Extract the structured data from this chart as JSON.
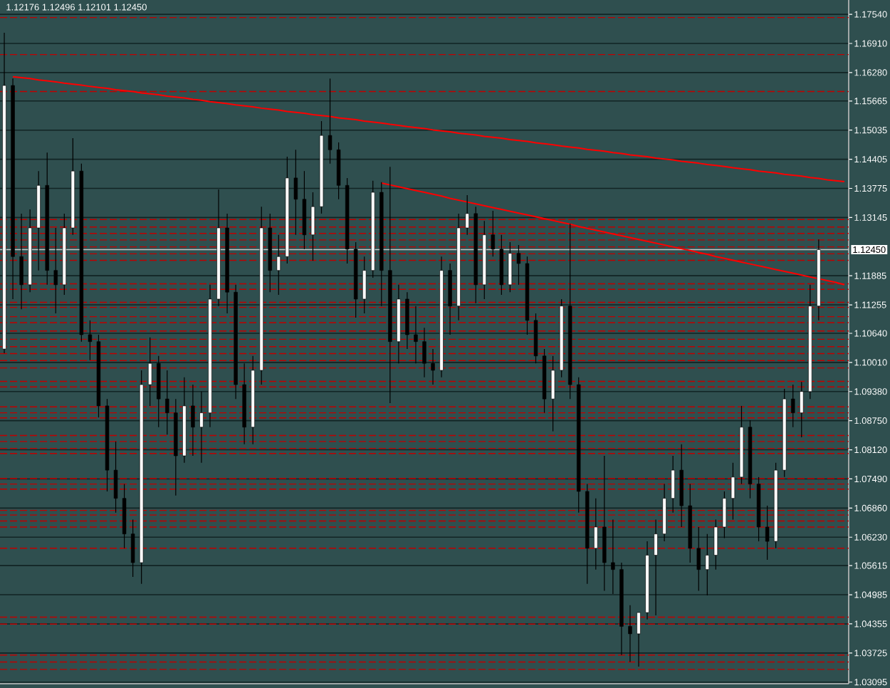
{
  "chart_data": {
    "type": "candlestick",
    "title": "1.12176 1.12496 1.12101 1.12450",
    "categories": [
      null,
      null,
      null,
      null,
      null,
      null,
      null,
      null,
      null,
      null,
      null,
      null,
      null,
      null,
      null,
      null,
      null,
      null,
      null,
      null,
      null,
      null,
      null,
      null,
      null,
      null,
      null,
      null,
      null,
      null,
      null,
      null,
      null,
      null,
      null,
      null,
      null,
      null,
      null,
      null,
      null,
      null,
      null,
      null,
      null,
      null,
      null,
      null,
      null,
      null,
      null,
      null,
      null,
      null,
      null,
      null,
      null,
      null,
      null,
      null,
      null,
      null,
      null,
      null,
      null,
      null,
      null,
      null,
      null,
      null,
      null,
      null,
      null,
      null,
      null,
      null,
      null,
      null,
      null,
      null,
      null,
      null,
      null,
      null,
      null,
      null,
      null,
      null,
      null,
      null,
      null,
      null,
      null,
      null,
      null,
      null,
      null,
      null,
      null
    ],
    "ohlc": [
      [
        1.103,
        1.1714,
        1.1021,
        1.16
      ],
      [
        1.16,
        1.1615,
        1.1138,
        1.123
      ],
      [
        1.123,
        1.1323,
        1.1116,
        1.1169
      ],
      [
        1.1169,
        1.1332,
        1.1153,
        1.1292
      ],
      [
        1.1292,
        1.1415,
        1.12,
        1.1384
      ],
      [
        1.1384,
        1.1455,
        1.1169,
        1.12
      ],
      [
        1.12,
        1.1292,
        1.1107,
        1.1169
      ],
      [
        1.1169,
        1.1323,
        1.1147,
        1.1292
      ],
      [
        1.1292,
        1.1486,
        1.1277,
        1.1415
      ],
      [
        1.1415,
        1.1431,
        1.1046,
        1.1061
      ],
      [
        1.1061,
        1.1092,
        1.1006,
        1.1046
      ],
      [
        1.1046,
        1.1061,
        1.0882,
        1.0907
      ],
      [
        1.0907,
        1.0922,
        1.0722,
        1.0768
      ],
      [
        1.0768,
        1.083,
        1.0676,
        1.0707
      ],
      [
        1.0707,
        1.0738,
        1.0599,
        1.063
      ],
      [
        1.063,
        1.0661,
        1.0537,
        1.0568
      ],
      [
        1.0568,
        1.0984,
        1.0522,
        1.0953
      ],
      [
        1.0953,
        1.1055,
        1.0907,
        1.0999
      ],
      [
        1.0999,
        1.1015,
        1.0861,
        1.0922
      ],
      [
        1.0922,
        1.0984,
        1.0845,
        1.0892
      ],
      [
        1.0892,
        1.0922,
        1.0713,
        1.0799
      ],
      [
        1.0799,
        1.0969,
        1.0784,
        1.0907
      ],
      [
        1.0907,
        1.0953,
        1.0799,
        1.0861
      ],
      [
        1.0861,
        1.0938,
        1.0784,
        1.0892
      ],
      [
        1.0892,
        1.1169,
        1.0861,
        1.1138
      ],
      [
        1.1138,
        1.1375,
        1.1123,
        1.1292
      ],
      [
        1.1292,
        1.1323,
        1.1107,
        1.1153
      ],
      [
        1.1153,
        1.1169,
        1.0922,
        1.0953
      ],
      [
        1.0953,
        1.0999,
        1.0824,
        1.0861
      ],
      [
        1.0861,
        1.1015,
        1.0824,
        1.0984
      ],
      [
        1.0984,
        1.1338,
        1.0953,
        1.1292
      ],
      [
        1.1292,
        1.1323,
        1.1153,
        1.12
      ],
      [
        1.12,
        1.1277,
        1.1147,
        1.123
      ],
      [
        1.123,
        1.1446,
        1.1215,
        1.14
      ],
      [
        1.14,
        1.1461,
        1.1277,
        1.1354
      ],
      [
        1.1354,
        1.1415,
        1.1246,
        1.1277
      ],
      [
        1.1277,
        1.1369,
        1.1221,
        1.1338
      ],
      [
        1.1338,
        1.1523,
        1.1323,
        1.1492
      ],
      [
        1.1492,
        1.1615,
        1.1431,
        1.1461
      ],
      [
        1.1461,
        1.1477,
        1.1354,
        1.1384
      ],
      [
        1.1384,
        1.14,
        1.1215,
        1.1246
      ],
      [
        1.1246,
        1.1261,
        1.1098,
        1.1138
      ],
      [
        1.1138,
        1.123,
        1.1107,
        1.12
      ],
      [
        1.12,
        1.1394,
        1.1184,
        1.1369
      ],
      [
        1.1369,
        1.1391,
        1.1123,
        1.12
      ],
      [
        1.12,
        1.1424,
        1.0913,
        1.1046
      ],
      [
        1.1046,
        1.1169,
        1.0999,
        1.1138
      ],
      [
        1.1138,
        1.1153,
        1.103,
        1.1061
      ],
      [
        1.1061,
        1.1123,
        1.0999,
        1.1046
      ],
      [
        1.1046,
        1.1076,
        1.0969,
        1.0999
      ],
      [
        1.0999,
        1.103,
        1.0953,
        1.0984
      ],
      [
        1.0984,
        1.123,
        1.0969,
        1.12
      ],
      [
        1.12,
        1.1215,
        1.1061,
        1.1123
      ],
      [
        1.1123,
        1.1323,
        1.1092,
        1.1292
      ],
      [
        1.1292,
        1.1363,
        1.1277,
        1.1323
      ],
      [
        1.1323,
        1.1338,
        1.1129,
        1.1169
      ],
      [
        1.1169,
        1.1307,
        1.1138,
        1.1277
      ],
      [
        1.1277,
        1.1329,
        1.123,
        1.1246
      ],
      [
        1.1246,
        1.1277,
        1.1147,
        1.1169
      ],
      [
        1.1169,
        1.1261,
        1.1153,
        1.1237
      ],
      [
        1.1237,
        1.1255,
        1.1169,
        1.1215
      ],
      [
        1.1215,
        1.123,
        1.1061,
        1.1092
      ],
      [
        1.1092,
        1.1107,
        1.0999,
        1.1015
      ],
      [
        1.1015,
        1.103,
        1.0892,
        1.0922
      ],
      [
        1.0922,
        1.1015,
        1.0852,
        1.0984
      ],
      [
        1.0984,
        1.1138,
        1.0969,
        1.1123
      ],
      [
        1.1123,
        1.1301,
        1.0922,
        1.0953
      ],
      [
        1.0953,
        1.0969,
        1.0676,
        1.0722
      ],
      [
        1.0722,
        1.0738,
        1.0522,
        1.0599
      ],
      [
        1.0599,
        1.0707,
        1.0553,
        1.0645
      ],
      [
        1.0645,
        1.0799,
        1.0507,
        1.0568
      ],
      [
        1.0568,
        1.0661,
        1.05,
        1.0553
      ],
      [
        1.0553,
        1.0568,
        1.0368,
        1.043
      ],
      [
        1.043,
        1.0476,
        1.0353,
        1.0414
      ],
      [
        1.0414,
        1.046,
        1.0343,
        1.046
      ],
      [
        1.046,
        1.0614,
        1.0445,
        1.0584
      ],
      [
        1.0584,
        1.0661,
        1.0454,
        1.063
      ],
      [
        1.063,
        1.0738,
        1.0614,
        1.0707
      ],
      [
        1.0707,
        1.0799,
        1.0676,
        1.0768
      ],
      [
        1.0768,
        1.0824,
        1.0645,
        1.0691
      ],
      [
        1.0691,
        1.0738,
        1.0568,
        1.0599
      ],
      [
        1.0599,
        1.0645,
        1.0507,
        1.0553
      ],
      [
        1.0553,
        1.063,
        1.0497,
        1.0584
      ],
      [
        1.0584,
        1.0661,
        1.0553,
        1.0645
      ],
      [
        1.0645,
        1.0722,
        1.0621,
        1.0707
      ],
      [
        1.0707,
        1.0784,
        1.0661,
        1.0753
      ],
      [
        1.0753,
        1.0907,
        1.0738,
        1.0861
      ],
      [
        1.0861,
        1.0876,
        1.0707,
        1.0738
      ],
      [
        1.0738,
        1.0753,
        1.0614,
        1.0645
      ],
      [
        1.0645,
        1.0691,
        1.0574,
        1.0614
      ],
      [
        1.0614,
        1.0784,
        1.0599,
        1.0768
      ],
      [
        1.0768,
        1.0944,
        1.0753,
        1.0922
      ],
      [
        1.0922,
        1.0953,
        1.0861,
        1.0892
      ],
      [
        1.0892,
        1.0959,
        1.0839,
        1.0938
      ],
      [
        1.0938,
        1.1169,
        1.0922,
        1.1123
      ],
      [
        1.1123,
        1.1267,
        1.1092,
        1.1245
      ],
      null,
      null,
      null
    ],
    "colors": [
      "#ffffff",
      "#000000",
      "#000000",
      "#ffffff",
      "#ffffff",
      "#000000",
      "#000000",
      "#ffffff",
      "#ffffff",
      "#000000",
      "#000000",
      "#000000",
      "#000000",
      "#000000",
      "#000000",
      "#000000",
      "#ffffff",
      "#ffffff",
      "#000000",
      "#000000",
      "#000000",
      "#ffffff",
      "#000000",
      "#ffffff",
      "#ffffff",
      "#ffffff",
      "#000000",
      "#000000",
      "#000000",
      "#ffffff",
      "#ffffff",
      "#000000",
      "#ffffff",
      "#ffffff",
      "#000000",
      "#000000",
      "#ffffff",
      "#ffffff",
      "#000000",
      "#000000",
      "#000000",
      "#000000",
      "#ffffff",
      "#ffffff",
      "#000000",
      "#000000",
      "#ffffff",
      "#000000",
      "#000000",
      "#000000",
      "#000000",
      "#ffffff",
      "#000000",
      "#ffffff",
      "#ffffff",
      "#000000",
      "#ffffff",
      "#000000",
      "#000000",
      "#ffffff",
      "#000000",
      "#000000",
      "#000000",
      "#000000",
      "#ffffff",
      "#ffffff",
      "#000000",
      "#000000",
      "#000000",
      "#ffffff",
      "#000000",
      "#000000",
      "#000000",
      "#000000",
      "#ffffff",
      "#ffffff",
      "#ffffff",
      "#ffffff",
      "#ffffff",
      "#000000",
      "#000000",
      "#000000",
      "#ffffff",
      "#ffffff",
      "#ffffff",
      "#ffffff",
      "#ffffff",
      "#000000",
      "#000000",
      "#000000",
      "#ffffff",
      "#ffffff",
      "#000000",
      "#ffffff",
      "#ffffff",
      "#ffffff",
      null,
      null,
      null
    ],
    "series": [
      {
        "type": "line",
        "color": "#ff0000",
        "values": [
          null,
          1.1619,
          1.1617,
          1.1615,
          1.1612,
          1.161,
          1.1608,
          1.1605,
          1.1603,
          1.1601,
          1.1598,
          1.1596,
          1.1594,
          1.1591,
          1.1589,
          1.1587,
          1.1584,
          1.1582,
          1.158,
          1.1577,
          1.1575,
          1.1573,
          1.157,
          1.1568,
          1.1565,
          1.1563,
          1.1561,
          1.1558,
          1.1556,
          1.1554,
          1.1551,
          1.1549,
          1.1547,
          1.1544,
          1.1542,
          1.154,
          1.1537,
          1.1535,
          1.1533,
          1.153,
          1.1528,
          1.1526,
          1.1523,
          1.1521,
          1.1519,
          1.1516,
          1.1514,
          1.1511,
          1.1509,
          1.1507,
          1.1504,
          1.1502,
          1.15,
          1.1497,
          1.1495,
          1.1493,
          1.149,
          1.1488,
          1.1486,
          1.1483,
          1.1481,
          1.1479,
          1.1476,
          1.1474,
          1.1472,
          1.1469,
          1.1467,
          1.1465,
          1.1462,
          1.146,
          1.1458,
          1.1455,
          1.1453,
          1.145,
          1.1448,
          1.1446,
          1.1443,
          1.1441,
          1.1439,
          1.1436,
          1.1434,
          1.1432,
          1.1429,
          1.1427,
          1.1425,
          1.1422,
          1.142,
          1.1418,
          1.1415,
          1.1413,
          1.1411,
          1.1408,
          1.1406,
          1.1404,
          1.1401,
          1.1399,
          1.1396,
          1.1394,
          1.1392
        ]
      },
      {
        "type": "line",
        "color": "#ff0000",
        "values": [
          null,
          null,
          null,
          null,
          null,
          null,
          null,
          null,
          null,
          null,
          null,
          null,
          null,
          null,
          null,
          null,
          null,
          null,
          null,
          null,
          null,
          null,
          null,
          null,
          null,
          null,
          null,
          null,
          null,
          null,
          null,
          null,
          null,
          null,
          null,
          null,
          null,
          null,
          null,
          null,
          null,
          null,
          null,
          null,
          1.1389,
          1.1385,
          1.1381,
          1.1377,
          1.1373,
          1.1369,
          1.1365,
          1.1361,
          1.1356,
          1.1352,
          1.1348,
          1.1344,
          1.134,
          1.1336,
          1.1332,
          1.1328,
          1.1324,
          1.132,
          1.1316,
          1.1312,
          1.1308,
          1.1304,
          1.13,
          1.1295,
          1.1291,
          1.1287,
          1.1283,
          1.1279,
          1.1275,
          1.1271,
          1.1267,
          1.1263,
          1.1259,
          1.1255,
          1.1251,
          1.1247,
          1.1243,
          1.1239,
          1.1235,
          1.123,
          1.1226,
          1.1222,
          1.1218,
          1.1214,
          1.121,
          1.1206,
          1.1202,
          1.1198,
          1.1194,
          1.119,
          1.1186,
          1.1182,
          1.1178,
          1.1174,
          1.1169
        ]
      }
    ],
    "ylim": [
      1.0306,
      1.1785
    ],
    "yticks": [
      {
        "value": 1.1754,
        "label": "1.17540"
      },
      {
        "value": 1.1691,
        "label": "1.16910"
      },
      {
        "value": 1.1628,
        "label": "1.16280"
      },
      1.15665,
      1.15035,
      1.14405,
      1.13775,
      1.13145,
      1.11885,
      1.11255,
      {
        "value": 1.1064,
        "label": "1.10640"
      },
      {
        "value": 1.1001,
        "label": "1.10010"
      },
      {
        "value": 1.0938,
        "label": "1.09380"
      },
      {
        "value": 1.0875,
        "label": "1.08750"
      },
      {
        "value": 1.0812,
        "label": "1.08120"
      },
      {
        "value": 1.0749,
        "label": "1.07490"
      },
      {
        "value": 1.0686,
        "label": "1.06860"
      },
      {
        "value": 1.0623,
        "label": "1.06230"
      },
      1.05615,
      1.04985,
      1.04355,
      1.03725,
      1.03095
    ],
    "tick_labels": "y",
    "grid": "y",
    "ref_lines": [
      {
        "axis": "y",
        "value": 1.1747,
        "color": "#c00000",
        "line_style": "dashed"
      },
      {
        "axis": "y",
        "value": 1.1667,
        "color": "#c00000",
        "line_style": "dashed"
      },
      {
        "axis": "y",
        "value": 1.1587,
        "color": "#c00000",
        "line_style": "dashed"
      },
      {
        "axis": "y",
        "value": 1.131,
        "color": "#c00000",
        "line_style": "dashed"
      },
      {
        "axis": "y",
        "value": 1.1294,
        "color": "#c00000",
        "line_style": "dashed"
      },
      {
        "axis": "y",
        "value": 1.128,
        "color": "#c00000",
        "line_style": "dashed"
      },
      {
        "axis": "y",
        "value": 1.1266,
        "color": "#c00000",
        "line_style": "dashed"
      },
      {
        "axis": "y",
        "value": 1.1251,
        "color": "#c00000",
        "line_style": "dashed"
      },
      {
        "axis": "y",
        "value": 1.1236,
        "color": "#c00000",
        "line_style": "dashed"
      },
      {
        "axis": "y",
        "value": 1.1222,
        "color": "#c00000",
        "line_style": "dashed"
      },
      {
        "axis": "y",
        "value": 1.1171,
        "color": "#c00000",
        "line_style": "dashed"
      },
      {
        "axis": "y",
        "value": 1.1159,
        "color": "#c00000",
        "line_style": "dashed"
      },
      {
        "axis": "y",
        "value": 1.1131,
        "color": "#c00000",
        "line_style": "dashed"
      },
      {
        "axis": "y",
        "value": 1.112,
        "color": "#c00000",
        "line_style": "dashed"
      },
      {
        "axis": "y",
        "value": 1.11,
        "color": "#c00000",
        "line_style": "dashed"
      },
      {
        "axis": "y",
        "value": 1.1087,
        "color": "#c00000",
        "line_style": "dashed"
      },
      {
        "axis": "y",
        "value": 1.1069,
        "color": "#c00000",
        "line_style": "dashed"
      },
      {
        "axis": "y",
        "value": 1.1051,
        "color": "#c00000",
        "line_style": "dashed"
      },
      {
        "axis": "y",
        "value": 1.1035,
        "color": "#c00000",
        "line_style": "dashed"
      },
      {
        "axis": "y",
        "value": 1.102,
        "color": "#c00000",
        "line_style": "dashed"
      },
      {
        "axis": "y",
        "value": 1.1005,
        "color": "#c00000",
        "line_style": "dashed"
      },
      {
        "axis": "y",
        "value": 1.0989,
        "color": "#c00000",
        "line_style": "dashed"
      },
      {
        "axis": "y",
        "value": 1.096,
        "color": "#c00000",
        "line_style": "dashed"
      },
      {
        "axis": "y",
        "value": 1.0948,
        "color": "#c00000",
        "line_style": "dashed"
      },
      {
        "axis": "y",
        "value": 1.0905,
        "color": "#c00000",
        "line_style": "dashed"
      },
      {
        "axis": "y",
        "value": 1.0892,
        "color": "#c00000",
        "line_style": "dashed"
      },
      {
        "axis": "y",
        "value": 1.0881,
        "color": "#c00000",
        "line_style": "dashed"
      },
      {
        "axis": "y",
        "value": 1.0843,
        "color": "#c00000",
        "line_style": "dashed"
      },
      {
        "axis": "y",
        "value": 1.083,
        "color": "#c00000",
        "line_style": "dashed"
      },
      {
        "axis": "y",
        "value": 1.0815,
        "color": "#c00000",
        "line_style": "dashed"
      },
      {
        "axis": "y",
        "value": 1.0804,
        "color": "#c00000",
        "line_style": "dashed"
      },
      {
        "axis": "y",
        "value": 1.075,
        "color": "#c00000",
        "line_style": "dashed"
      },
      {
        "axis": "y",
        "value": 1.0738,
        "color": "#c00000",
        "line_style": "dashed"
      },
      {
        "axis": "y",
        "value": 1.0727,
        "color": "#c00000",
        "line_style": "dashed"
      },
      {
        "axis": "y",
        "value": 1.0681,
        "color": "#c00000",
        "line_style": "dashed"
      },
      {
        "axis": "y",
        "value": 1.0671,
        "color": "#c00000",
        "line_style": "dashed"
      },
      {
        "axis": "y",
        "value": 1.0658,
        "color": "#c00000",
        "line_style": "dashed"
      },
      {
        "axis": "y",
        "value": 1.0645,
        "color": "#c00000",
        "line_style": "dashed"
      },
      {
        "axis": "y",
        "value": 1.0599,
        "color": "#c00000",
        "line_style": "dashed"
      },
      {
        "axis": "y",
        "value": 1.045,
        "color": "#c00000",
        "line_style": "dashed"
      },
      {
        "axis": "y",
        "value": 1.0435,
        "color": "#c00000",
        "line_style": "dashed"
      },
      {
        "axis": "y",
        "value": 1.0368,
        "color": "#c00000",
        "line_style": "dashed"
      },
      {
        "axis": "y",
        "value": 1.0353,
        "color": "#c00000",
        "line_style": "dashed"
      },
      {
        "axis": "y",
        "value": 1.0337,
        "color": "#c00000",
        "line_style": "dashed"
      },
      {
        "axis": "y",
        "value": 1.1245,
        "label": "1.12450",
        "color": "#c8c8c8",
        "line_style": "solid"
      }
    ]
  }
}
